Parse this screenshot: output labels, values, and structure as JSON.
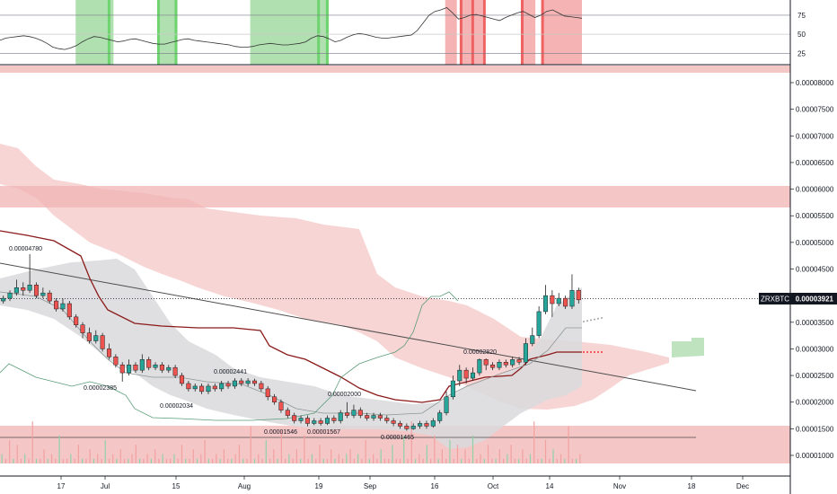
{
  "symbol": "ZRXBTC",
  "last_price": "0.00003921",
  "colors": {
    "bull": "#26a69a",
    "bear": "#ef5350",
    "cloud": "#f4c7c7",
    "zone": "#f2b3b3",
    "baseline": "#8b1a1a",
    "band": "#d9d9dc",
    "green_bar": "#6fd46f",
    "red_bar": "#ef6262"
  },
  "chart_data": [
    {
      "type": "line",
      "title": "",
      "ylim": [
        10,
        95
      ],
      "yticks": [
        "75",
        "50",
        "25"
      ],
      "series": [
        {
          "values": [
            42,
            45,
            46,
            47,
            48,
            47,
            45,
            42,
            38,
            33,
            31,
            30,
            32,
            35,
            40,
            44,
            47,
            46,
            44,
            42,
            40,
            41,
            43,
            44,
            42,
            40,
            38,
            37,
            37,
            39,
            41,
            43,
            44,
            42,
            41,
            40,
            39,
            38,
            37,
            36,
            34,
            33,
            33,
            34,
            36,
            37,
            38,
            37,
            36,
            36,
            37,
            38,
            40,
            45,
            48,
            47,
            44,
            40,
            42,
            46,
            49,
            51,
            50,
            48,
            46,
            45,
            45,
            46,
            47,
            48,
            49,
            55,
            65,
            75,
            80,
            82,
            85,
            78,
            70,
            72,
            75,
            76,
            74,
            72,
            70,
            68,
            72,
            75,
            78,
            80,
            76,
            72,
            75,
            80,
            82,
            78,
            74,
            73,
            72,
            71
          ]
        }
      ],
      "green_spans": [
        [
          0.13,
          0.195
        ],
        [
          0.27,
          0.305
        ],
        [
          0.43,
          0.55
        ],
        [
          0.545,
          0.565
        ]
      ],
      "red_spans": [
        [
          0.765,
          0.785
        ],
        [
          0.79,
          0.83
        ],
        [
          0.895,
          0.92
        ],
        [
          0.93,
          1.0
        ]
      ]
    },
    {
      "type": "candlestick",
      "title": "",
      "ylim": [
        8.9e-06,
        8.3e-06
      ],
      "yticks": [
        "0.00008000",
        "0.00007500",
        "0.00007000",
        "0.00006500",
        "0.00006000",
        "0.00005500",
        "0.00005000",
        "0.00004500",
        "0.00004000",
        "0.00003500",
        "0.00003000",
        "0.00002500",
        "0.00002000",
        "0.00001500",
        "0.00001000"
      ],
      "xticks": [
        "17",
        "Jul",
        "15",
        "Aug",
        "19",
        "Sep",
        "16",
        "Oct",
        "14",
        "Nov",
        "18",
        "Dec"
      ],
      "annotations": [
        "0.00004780",
        "0.00002385",
        "0.00002034",
        "0.00002441",
        "0.00001546",
        "0.00001567",
        "0.00002000",
        "0.00001465",
        "0.00002820"
      ],
      "candles": [
        [
          3.9e-05,
          3.95e-05,
          4e-05,
          3.85e-05
        ],
        [
          3.95e-05,
          4.05e-05,
          4.1e-05,
          3.9e-05
        ],
        [
          4.05e-05,
          4.15e-05,
          4.3e-05,
          4e-05
        ],
        [
          4.15e-05,
          4.1e-05,
          4.25e-05,
          4e-05
        ],
        [
          4.1e-05,
          4.2e-05,
          4.78e-05,
          4.05e-05
        ],
        [
          4.2e-05,
          4e-05,
          4.25e-05,
          3.95e-05
        ],
        [
          4e-05,
          4.05e-05,
          4.15e-05,
          3.95e-05
        ],
        [
          4.05e-05,
          3.9e-05,
          4.1e-05,
          3.85e-05
        ],
        [
          3.9e-05,
          3.75e-05,
          3.95e-05,
          3.7e-05
        ],
        [
          3.75e-05,
          3.85e-05,
          3.95e-05,
          3.7e-05
        ],
        [
          3.85e-05,
          3.6e-05,
          3.9e-05,
          3.55e-05
        ],
        [
          3.6e-05,
          3.45e-05,
          3.65e-05,
          3.4e-05
        ],
        [
          3.45e-05,
          3.3e-05,
          3.5e-05,
          3.2e-05
        ],
        [
          3.3e-05,
          3.15e-05,
          3.4e-05,
          3.1e-05
        ],
        [
          3.15e-05,
          3.25e-05,
          3.35e-05,
          3.1e-05
        ],
        [
          3.25e-05,
          3e-05,
          3.3e-05,
          2.95e-05
        ],
        [
          3e-05,
          2.85e-05,
          3.1e-05,
          2.8e-05
        ],
        [
          2.85e-05,
          2.7e-05,
          2.9e-05,
          2.65e-05
        ],
        [
          2.7e-05,
          2.55e-05,
          2.75e-05,
          2.385e-05
        ],
        [
          2.55e-05,
          2.7e-05,
          2.8e-05,
          2.5e-05
        ],
        [
          2.7e-05,
          2.6e-05,
          2.75e-05,
          2.55e-05
        ],
        [
          2.6e-05,
          2.8e-05,
          2.9e-05,
          2.55e-05
        ],
        [
          2.8e-05,
          2.65e-05,
          2.85e-05,
          2.6e-05
        ],
        [
          2.65e-05,
          2.7e-05,
          2.75e-05,
          2.6e-05
        ],
        [
          2.7e-05,
          2.6e-05,
          2.75e-05,
          2.55e-05
        ],
        [
          2.6e-05,
          2.65e-05,
          2.7e-05,
          2.55e-05
        ],
        [
          2.65e-05,
          2.5e-05,
          2.7e-05,
          2.45e-05
        ],
        [
          2.5e-05,
          2.35e-05,
          2.55e-05,
          2.3e-05
        ],
        [
          2.35e-05,
          2.25e-05,
          2.4e-05,
          2.2e-05
        ],
        [
          2.25e-05,
          2.3e-05,
          2.35e-05,
          2.2e-05
        ],
        [
          2.3e-05,
          2.2e-05,
          2.35e-05,
          2.15e-05
        ],
        [
          2.2e-05,
          2.3e-05,
          2.35e-05,
          2.15e-05
        ],
        [
          2.3e-05,
          2.25e-05,
          2.35e-05,
          2.2e-05
        ],
        [
          2.25e-05,
          2.35e-05,
          2.4e-05,
          2.2e-05
        ],
        [
          2.35e-05,
          2.3e-05,
          2.4e-05,
          2.25e-05
        ],
        [
          2.3e-05,
          2.4e-05,
          2.45e-05,
          2.25e-05
        ],
        [
          2.4e-05,
          2.35e-05,
          2.45e-05,
          2.3e-05
        ],
        [
          2.35e-05,
          2.4e-05,
          2.45e-05,
          2.3e-05
        ],
        [
          2.4e-05,
          2.35e-05,
          2.441e-05,
          2.3e-05
        ],
        [
          2.35e-05,
          2.25e-05,
          2.4e-05,
          2.2e-05
        ],
        [
          2.25e-05,
          2.1e-05,
          2.3e-05,
          2.034e-05
        ],
        [
          2.1e-05,
          2e-05,
          2.15e-05,
          1.95e-05
        ],
        [
          2e-05,
          1.85e-05,
          2.05e-05,
          1.8e-05
        ],
        [
          1.85e-05,
          1.75e-05,
          1.9e-05,
          1.7e-05
        ],
        [
          1.75e-05,
          1.65e-05,
          1.8e-05,
          1.6e-05
        ],
        [
          1.65e-05,
          1.7e-05,
          1.75e-05,
          1.6e-05
        ],
        [
          1.7e-05,
          1.6e-05,
          1.75e-05,
          1.546e-05
        ],
        [
          1.6e-05,
          1.65e-05,
          1.7e-05,
          1.567e-05
        ],
        [
          1.65e-05,
          1.6e-05,
          1.7e-05,
          1.56e-05
        ],
        [
          1.6e-05,
          1.7e-05,
          1.75e-05,
          1.57e-05
        ],
        [
          1.7e-05,
          1.65e-05,
          1.75e-05,
          1.6e-05
        ],
        [
          1.65e-05,
          1.8e-05,
          1.85e-05,
          1.6e-05
        ],
        [
          1.8e-05,
          1.75e-05,
          2e-05,
          1.7e-05
        ],
        [
          1.75e-05,
          1.85e-05,
          1.95e-05,
          1.7e-05
        ],
        [
          1.85e-05,
          1.75e-05,
          1.9e-05,
          1.7e-05
        ],
        [
          1.75e-05,
          1.7e-05,
          1.8e-05,
          1.65e-05
        ],
        [
          1.7e-05,
          1.75e-05,
          1.8e-05,
          1.65e-05
        ],
        [
          1.75e-05,
          1.7e-05,
          1.8e-05,
          1.65e-05
        ],
        [
          1.7e-05,
          1.65e-05,
          1.75e-05,
          1.6e-05
        ],
        [
          1.65e-05,
          1.6e-05,
          1.7e-05,
          1.55e-05
        ],
        [
          1.6e-05,
          1.55e-05,
          1.65e-05,
          1.5e-05
        ],
        [
          1.55e-05,
          1.5e-05,
          1.6e-05,
          1.465e-05
        ],
        [
          1.5e-05,
          1.55e-05,
          1.6e-05,
          1.48e-05
        ],
        [
          1.55e-05,
          1.6e-05,
          1.65e-05,
          1.5e-05
        ],
        [
          1.6e-05,
          1.55e-05,
          1.65e-05,
          1.5e-05
        ],
        [
          1.55e-05,
          1.65e-05,
          1.7e-05,
          1.52e-05
        ],
        [
          1.65e-05,
          1.8e-05,
          1.85e-05,
          1.6e-05
        ],
        [
          1.8e-05,
          2.1e-05,
          2.2e-05,
          1.75e-05
        ],
        [
          2.1e-05,
          2.4e-05,
          2.5e-05,
          2.05e-05
        ],
        [
          2.4e-05,
          2.6e-05,
          2.7e-05,
          2.3e-05
        ],
        [
          2.6e-05,
          2.45e-05,
          2.65e-05,
          2.35e-05
        ],
        [
          2.45e-05,
          2.55e-05,
          2.65e-05,
          2.4e-05
        ],
        [
          2.55e-05,
          2.8e-05,
          2.82e-05,
          2.5e-05
        ],
        [
          2.8e-05,
          2.7e-05,
          2.82e-05,
          2.6e-05
        ],
        [
          2.7e-05,
          2.65e-05,
          2.75e-05,
          2.6e-05
        ],
        [
          2.65e-05,
          2.75e-05,
          2.8e-05,
          2.6e-05
        ],
        [
          2.75e-05,
          2.7e-05,
          2.8e-05,
          2.65e-05
        ],
        [
          2.7e-05,
          2.8e-05,
          2.85e-05,
          2.65e-05
        ],
        [
          2.8e-05,
          2.75e-05,
          2.85e-05,
          2.7e-05
        ],
        [
          2.75e-05,
          3.1e-05,
          3.2e-05,
          2.7e-05
        ],
        [
          3.1e-05,
          3.25e-05,
          3.4e-05,
          3.05e-05
        ],
        [
          3.25e-05,
          3.7e-05,
          3.8e-05,
          3.2e-05
        ],
        [
          3.7e-05,
          4e-05,
          4.2e-05,
          3.65e-05
        ],
        [
          4e-05,
          3.85e-05,
          4.1e-05,
          3.6e-05
        ],
        [
          3.85e-05,
          3.95e-05,
          4.05e-05,
          3.8e-05
        ],
        [
          3.95e-05,
          3.8e-05,
          4e-05,
          3.75e-05
        ],
        [
          3.8e-05,
          4.1e-05,
          4.4e-05,
          3.75e-05
        ],
        [
          4.1e-05,
          3.921e-05,
          4.15e-05,
          3.85e-05
        ]
      ]
    },
    {
      "type": "bar",
      "title": "",
      "values": [
        2,
        1,
        5,
        1,
        4,
        1,
        2,
        1,
        9,
        1,
        1,
        3,
        1,
        2,
        1,
        6,
        1,
        1,
        2,
        1,
        4,
        1,
        1,
        3,
        1,
        2,
        1,
        5,
        1,
        2,
        1,
        3,
        1,
        1,
        2,
        4,
        1,
        1,
        2,
        1,
        3,
        1,
        2,
        1,
        1,
        2,
        1,
        4,
        1,
        1,
        3,
        1,
        2,
        5,
        1,
        1,
        2,
        1,
        3,
        1,
        1,
        2,
        4,
        1,
        1,
        8,
        1,
        2,
        1,
        5,
        1,
        3,
        1,
        7,
        1,
        2,
        1,
        3,
        1,
        6,
        1,
        2,
        1,
        4,
        1,
        1,
        3,
        1,
        2,
        1,
        2,
        3,
        1,
        2,
        1,
        5,
        1,
        2,
        1,
        3,
        1,
        1,
        4,
        1,
        1,
        6,
        1,
        9,
        1,
        2,
        1,
        4,
        1,
        6,
        1,
        3,
        1,
        5,
        1,
        4,
        1,
        3,
        1,
        6,
        1,
        2,
        1,
        4,
        1,
        1,
        3,
        1,
        2,
        4,
        1,
        1,
        3,
        1,
        2,
        9,
        1,
        1,
        5,
        1,
        3,
        1,
        2,
        1,
        8,
        1,
        1,
        2
      ]
    }
  ]
}
